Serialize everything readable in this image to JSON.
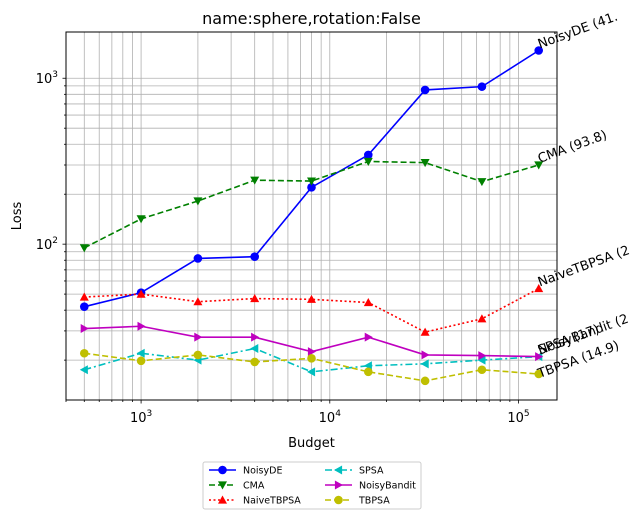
{
  "chart_data": {
    "type": "line",
    "title": "name:sphere,rotation:False",
    "xlabel": "Budget",
    "ylabel": "Loss",
    "xscale": "log",
    "yscale": "log",
    "xlim": [
      400,
      160000
    ],
    "ylim": [
      11.5,
      1900
    ],
    "grid": true,
    "legend_placement": "bottom-center, below axes, 2 columns",
    "x_tick_labels": [
      {
        "value": 1000,
        "base": "10",
        "exp": "3"
      },
      {
        "value": 10000,
        "base": "10",
        "exp": "4"
      },
      {
        "value": 100000,
        "base": "10",
        "exp": "5"
      }
    ],
    "y_tick_labels": [
      {
        "value": 100,
        "base": "10",
        "exp": "2"
      },
      {
        "value": 1000,
        "base": "10",
        "exp": "3"
      }
    ],
    "x": [
      500,
      1000,
      2000,
      4000,
      8000,
      16000,
      32000,
      64000,
      128000
    ],
    "series": [
      {
        "name": "NoisyDE",
        "color": "#0000ff",
        "dash": "solid",
        "marker": "circle",
        "values": [
          42,
          51,
          82,
          84,
          220,
          345,
          850,
          890,
          1470
        ],
        "annotation": "NoisyDE (41."
      },
      {
        "name": "CMA",
        "color": "#008000",
        "dash": "dashed",
        "marker": "triangle-down",
        "values": [
          95,
          142,
          182,
          243,
          240,
          315,
          310,
          238,
          300
        ],
        "annotation": "CMA (93.8)"
      },
      {
        "name": "NaiveTBPSA",
        "color": "#ff0000",
        "dash": "dotted",
        "marker": "triangle-up",
        "values": [
          48,
          50,
          45,
          47,
          46.5,
          44.5,
          29.5,
          35.5,
          54
        ],
        "annotation": "NaiveTBPSA (2"
      },
      {
        "name": "SPSA",
        "color": "#00bfbf",
        "dash": "dashdot",
        "marker": "triangle-left",
        "values": [
          17.5,
          22,
          20,
          23.5,
          17,
          18.5,
          19,
          20,
          21
        ],
        "annotation": "SPSA (17)"
      },
      {
        "name": "NoisyBandit",
        "color": "#bf00bf",
        "dash": "solid",
        "marker": "triangle-right",
        "values": [
          31,
          32,
          27.5,
          27.5,
          22.5,
          27.5,
          21.5,
          21.3,
          21
        ],
        "annotation": "NoisyBandit (2"
      },
      {
        "name": "TBPSA",
        "color": "#bfbf00",
        "dash": "dashed",
        "marker": "circle",
        "values": [
          22,
          19.8,
          21.5,
          19.5,
          20.5,
          17,
          15,
          17.5,
          16.5
        ],
        "annotation": "TBPSA (14.9)"
      }
    ]
  }
}
